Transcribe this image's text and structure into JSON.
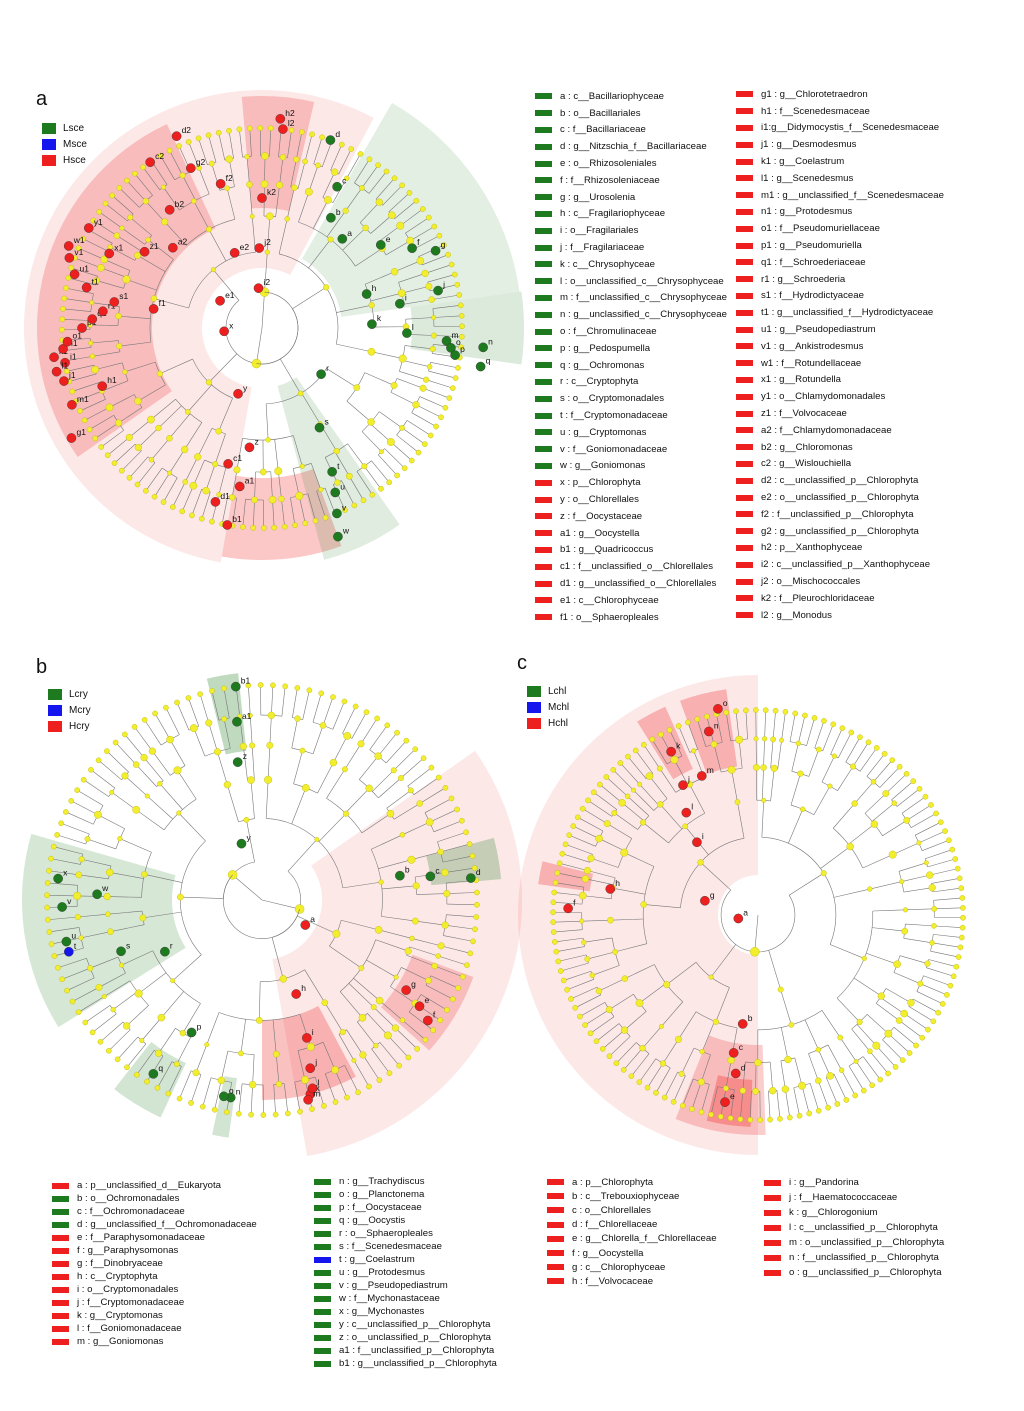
{
  "colors": {
    "green": "#1e7a1e",
    "blue": "#1515ee",
    "red": "#ee1f1f",
    "node": "#f2ee2e"
  },
  "panels": {
    "a": {
      "letter": "a",
      "groups": [
        {
          "label": "Lsce",
          "color": "#1e7a1e"
        },
        {
          "label": "Msce",
          "color": "#1515ee"
        },
        {
          "label": "Hsce",
          "color": "#ee1f1f"
        }
      ],
      "keys_col1": [
        {
          "text": "a : c__Bacillariophyceae",
          "color": "#1e7a1e"
        },
        {
          "text": "b : o__Bacillariales",
          "color": "#1e7a1e"
        },
        {
          "text": "c : f__Bacillariaceae",
          "color": "#1e7a1e"
        },
        {
          "text": "d : g__Nitzschia_f__Bacillariaceae",
          "color": "#1e7a1e"
        },
        {
          "text": "e : o__Rhizosoleniales",
          "color": "#1e7a1e"
        },
        {
          "text": "f : f__Rhizosoleniaceae",
          "color": "#1e7a1e"
        },
        {
          "text": "g : g__Urosolenia",
          "color": "#1e7a1e"
        },
        {
          "text": "h : c__Fragilariophyceae",
          "color": "#1e7a1e"
        },
        {
          "text": "i : o__Fragilariales",
          "color": "#1e7a1e"
        },
        {
          "text": "j : f__Fragilariaceae",
          "color": "#1e7a1e"
        },
        {
          "text": "k : c__Chrysophyceae",
          "color": "#1e7a1e"
        },
        {
          "text": "l : o__unclassified_c__Chrysophyceae",
          "color": "#1e7a1e"
        },
        {
          "text": "m : f__unclassified_c__Chrysophyceae",
          "color": "#1e7a1e"
        },
        {
          "text": "n : g__unclassified_c__Chrysophyceae",
          "color": "#1e7a1e"
        },
        {
          "text": "o : f__Chromulinaceae",
          "color": "#1e7a1e"
        },
        {
          "text": "p : g__Pedospumella",
          "color": "#1e7a1e"
        },
        {
          "text": "q : g__Ochromonas",
          "color": "#1e7a1e"
        },
        {
          "text": "r : c__Cryptophyta",
          "color": "#1e7a1e"
        },
        {
          "text": "s : o__Cryptomonadales",
          "color": "#1e7a1e"
        },
        {
          "text": "t : f__Cryptomonadaceae",
          "color": "#1e7a1e"
        },
        {
          "text": "u : g__Cryptomonas",
          "color": "#1e7a1e"
        },
        {
          "text": "v : f__Goniomonadaceae",
          "color": "#1e7a1e"
        },
        {
          "text": "w : g__Goniomonas",
          "color": "#1e7a1e"
        },
        {
          "text": "x : p__Chlorophyta",
          "color": "#ee1f1f"
        },
        {
          "text": "y : o__Chlorellales",
          "color": "#ee1f1f"
        },
        {
          "text": "z : f__Oocystaceae",
          "color": "#ee1f1f"
        },
        {
          "text": "a1 : g__Oocystella",
          "color": "#ee1f1f"
        },
        {
          "text": "b1 : g__Quadricoccus",
          "color": "#ee1f1f"
        },
        {
          "text": "c1 : f__unclassified_o__Chlorellales",
          "color": "#ee1f1f"
        },
        {
          "text": "d1 : g__unclassified_o__Chlorellales",
          "color": "#ee1f1f"
        },
        {
          "text": "e1 : c__Chlorophyceae",
          "color": "#ee1f1f"
        },
        {
          "text": "f1 : o__Sphaeropleales",
          "color": "#ee1f1f"
        }
      ],
      "keys_col2": [
        {
          "text": "g1 : g__Chlorotetraedron",
          "color": "#ee1f1f"
        },
        {
          "text": "h1 : f__Scenedesmaceae",
          "color": "#ee1f1f"
        },
        {
          "text": "i1:g__Didymocystis_f__Scenedesmaceae",
          "color": "#ee1f1f"
        },
        {
          "text": "j1 : g__Desmodesmus",
          "color": "#ee1f1f"
        },
        {
          "text": "k1 : g__Coelastrum",
          "color": "#ee1f1f"
        },
        {
          "text": "l1 : g__Scenedesmus",
          "color": "#ee1f1f"
        },
        {
          "text": "m1 : g__unclassified_f__Scenedesmaceae",
          "color": "#ee1f1f"
        },
        {
          "text": "n1 : g__Protodesmus",
          "color": "#ee1f1f"
        },
        {
          "text": "o1 : f__Pseudomuriellaceae",
          "color": "#ee1f1f"
        },
        {
          "text": "p1 : g__Pseudomuriella",
          "color": "#ee1f1f"
        },
        {
          "text": "q1 : f__Schroederiaceae",
          "color": "#ee1f1f"
        },
        {
          "text": "r1 : g__Schroederia",
          "color": "#ee1f1f"
        },
        {
          "text": "s1 : f__Hydrodictyaceae",
          "color": "#ee1f1f"
        },
        {
          "text": "t1 : g__unclassified_f__Hydrodictyaceae",
          "color": "#ee1f1f"
        },
        {
          "text": "u1 : g__Pseudopediastrum",
          "color": "#ee1f1f"
        },
        {
          "text": "v1 : g__Ankistrodesmus",
          "color": "#ee1f1f"
        },
        {
          "text": "w1 : f__Rotundellaceae",
          "color": "#ee1f1f"
        },
        {
          "text": "x1 : g__Rotundella",
          "color": "#ee1f1f"
        },
        {
          "text": "y1 : o__Chlamydomonadales",
          "color": "#ee1f1f"
        },
        {
          "text": "z1 : f__Volvocaceae",
          "color": "#ee1f1f"
        },
        {
          "text": "a2 : f__Chlamydomonadaceae",
          "color": "#ee1f1f"
        },
        {
          "text": "b2 : g__Chloromonas",
          "color": "#ee1f1f"
        },
        {
          "text": "c2 : g__Wislouchiella",
          "color": "#ee1f1f"
        },
        {
          "text": "d2 : c__unclassified_p__Chlorophyta",
          "color": "#ee1f1f"
        },
        {
          "text": "e2 : o__unclassified_p__Chlorophyta",
          "color": "#ee1f1f"
        },
        {
          "text": "f2 : f__unclassified_p__Chlorophyta",
          "color": "#ee1f1f"
        },
        {
          "text": "g2 : g__unclassified_p__Chlorophyta",
          "color": "#ee1f1f"
        },
        {
          "text": "h2 : p__Xanthophyceae",
          "color": "#ee1f1f"
        },
        {
          "text": "i2 : c__unclassified_p__Xanthophyceae",
          "color": "#ee1f1f"
        },
        {
          "text": "j2 : o__Mischococcales",
          "color": "#ee1f1f"
        },
        {
          "text": "k2 : f__Pleurochloridaceae",
          "color": "#ee1f1f"
        },
        {
          "text": "l2 : g__Monodus",
          "color": "#ee1f1f"
        }
      ]
    },
    "b": {
      "letter": "b",
      "groups": [
        {
          "label": "Lcry",
          "color": "#1e7a1e"
        },
        {
          "label": "Mcry",
          "color": "#1515ee"
        },
        {
          "label": "Hcry",
          "color": "#ee1f1f"
        }
      ],
      "keys_col1": [
        {
          "text": "a : p__unclassified_d__Eukaryota",
          "color": "#ee1f1f"
        },
        {
          "text": "b : o__Ochromonadales",
          "color": "#1e7a1e"
        },
        {
          "text": "c : f__Ochromonadaceae",
          "color": "#1e7a1e"
        },
        {
          "text": "d : g__unclassified_f__Ochromonadaceae",
          "color": "#1e7a1e"
        },
        {
          "text": "e : f__Paraphysomonadaceae",
          "color": "#ee1f1f"
        },
        {
          "text": "f : g__Paraphysomonas",
          "color": "#ee1f1f"
        },
        {
          "text": "g : f__Dinobryaceae",
          "color": "#ee1f1f"
        },
        {
          "text": "h : c__Cryptophyta",
          "color": "#ee1f1f"
        },
        {
          "text": "i : o__Cryptomonadales",
          "color": "#ee1f1f"
        },
        {
          "text": "j : f__Cryptomonadaceae",
          "color": "#ee1f1f"
        },
        {
          "text": "k : g__Cryptomonas",
          "color": "#ee1f1f"
        },
        {
          "text": "l : f__Goniomonadaceae",
          "color": "#ee1f1f"
        },
        {
          "text": "m : g__Goniomonas",
          "color": "#ee1f1f"
        }
      ],
      "keys_col2": [
        {
          "text": "n : g__Trachydiscus",
          "color": "#1e7a1e"
        },
        {
          "text": "o : g__Planctonema",
          "color": "#1e7a1e"
        },
        {
          "text": "p : f__Oocystaceae",
          "color": "#1e7a1e"
        },
        {
          "text": "q : g__Oocystis",
          "color": "#1e7a1e"
        },
        {
          "text": "r : o__Sphaeropleales",
          "color": "#1e7a1e"
        },
        {
          "text": "s : f__Scenedesmaceae",
          "color": "#1e7a1e"
        },
        {
          "text": "t : g__Coelastrum",
          "color": "#1515ee"
        },
        {
          "text": "u : g__Protodesmus",
          "color": "#1e7a1e"
        },
        {
          "text": "v : g__Pseudopediastrum",
          "color": "#1e7a1e"
        },
        {
          "text": "w : f__Mychonastaceae",
          "color": "#1e7a1e"
        },
        {
          "text": "x : g__Mychonastes",
          "color": "#1e7a1e"
        },
        {
          "text": "y : c__unclassified_p__Chlorophyta",
          "color": "#1e7a1e"
        },
        {
          "text": "z : o__unclassified_p__Chlorophyta",
          "color": "#1e7a1e"
        },
        {
          "text": "a1 : f__unclassified_p__Chlorophyta",
          "color": "#1e7a1e"
        },
        {
          "text": "b1 : g__unclassified_p__Chlorophyta",
          "color": "#1e7a1e"
        }
      ]
    },
    "c": {
      "letter": "c",
      "groups": [
        {
          "label": "Lchl",
          "color": "#1e7a1e"
        },
        {
          "label": "Mchl",
          "color": "#1515ee"
        },
        {
          "label": "Hchl",
          "color": "#ee1f1f"
        }
      ],
      "keys_col1": [
        {
          "text": "a : p__Chlorophyta",
          "color": "#ee1f1f"
        },
        {
          "text": "b : c__Trebouxiophyceae",
          "color": "#ee1f1f"
        },
        {
          "text": "c : o__Chlorellales",
          "color": "#ee1f1f"
        },
        {
          "text": "d : f__Chlorellaceae",
          "color": "#ee1f1f"
        },
        {
          "text": "e : g__Chlorella_f__Chlorellaceae",
          "color": "#ee1f1f"
        },
        {
          "text": "f : g__Oocystella",
          "color": "#ee1f1f"
        },
        {
          "text": "g : c__Chlorophyceae",
          "color": "#ee1f1f"
        },
        {
          "text": "h : f__Volvocaceae",
          "color": "#ee1f1f"
        }
      ],
      "keys_col2": [
        {
          "text": "i : g__Pandorina",
          "color": "#ee1f1f"
        },
        {
          "text": "j : f__Haematococcaceae",
          "color": "#ee1f1f"
        },
        {
          "text": "k : g__Chlorogonium",
          "color": "#ee1f1f"
        },
        {
          "text": "l : c__unclassified_p__Chlorophyta",
          "color": "#ee1f1f"
        },
        {
          "text": "m : o__unclassified_p__Chlorophyta",
          "color": "#ee1f1f"
        },
        {
          "text": "n : f__unclassified_p__Chlorophyta",
          "color": "#ee1f1f"
        },
        {
          "text": "o : g__unclassified_p__Chlorophyta",
          "color": "#ee1f1f"
        }
      ]
    }
  },
  "cladograms": {
    "a": {
      "marks": [
        {
          "label": "a",
          "group": "green"
        },
        {
          "label": "b",
          "group": "green"
        },
        {
          "label": "c",
          "group": "green"
        },
        {
          "label": "d",
          "group": "green"
        },
        {
          "label": "e",
          "group": "green"
        },
        {
          "label": "f",
          "group": "green"
        },
        {
          "label": "g",
          "group": "green"
        },
        {
          "label": "h",
          "group": "green"
        },
        {
          "label": "i",
          "group": "green"
        },
        {
          "label": "j",
          "group": "green"
        },
        {
          "label": "k",
          "group": "green"
        },
        {
          "label": "l",
          "group": "green"
        },
        {
          "label": "m",
          "group": "green"
        },
        {
          "label": "n",
          "group": "green"
        },
        {
          "label": "o",
          "group": "green"
        },
        {
          "label": "p",
          "group": "green"
        },
        {
          "label": "q",
          "group": "green"
        },
        {
          "label": "r",
          "group": "green"
        },
        {
          "label": "s",
          "group": "green"
        },
        {
          "label": "t",
          "group": "green"
        },
        {
          "label": "u",
          "group": "green"
        },
        {
          "label": "v",
          "group": "green"
        },
        {
          "label": "w",
          "group": "green"
        },
        {
          "label": "x",
          "group": "red"
        },
        {
          "label": "y",
          "group": "red"
        },
        {
          "label": "z",
          "group": "red"
        },
        {
          "label": "a1",
          "group": "red"
        },
        {
          "label": "b1",
          "group": "red"
        },
        {
          "label": "c1",
          "group": "red"
        },
        {
          "label": "d1",
          "group": "red"
        },
        {
          "label": "e1",
          "group": "red"
        },
        {
          "label": "f1",
          "group": "red"
        },
        {
          "label": "g1",
          "group": "red"
        },
        {
          "label": "h1",
          "group": "red"
        },
        {
          "label": "i1",
          "group": "red"
        },
        {
          "label": "j1",
          "group": "red"
        },
        {
          "label": "k1",
          "group": "red"
        },
        {
          "label": "l1",
          "group": "red"
        },
        {
          "label": "m1",
          "group": "red"
        },
        {
          "label": "n1",
          "group": "red"
        },
        {
          "label": "o1",
          "group": "red"
        },
        {
          "label": "p1",
          "group": "red"
        },
        {
          "label": "q1",
          "group": "red"
        },
        {
          "label": "r1",
          "group": "red"
        },
        {
          "label": "s1",
          "group": "red"
        },
        {
          "label": "t1",
          "group": "red"
        },
        {
          "label": "u1",
          "group": "red"
        },
        {
          "label": "v1",
          "group": "red"
        },
        {
          "label": "w1",
          "group": "red"
        },
        {
          "label": "x1",
          "group": "red"
        },
        {
          "label": "y1",
          "group": "red"
        },
        {
          "label": "z1",
          "group": "red"
        },
        {
          "label": "a2",
          "group": "red"
        },
        {
          "label": "b2",
          "group": "red"
        },
        {
          "label": "c2",
          "group": "red"
        },
        {
          "label": "d2",
          "group": "red"
        },
        {
          "label": "e2",
          "group": "red"
        },
        {
          "label": "f2",
          "group": "red"
        },
        {
          "label": "g2",
          "group": "red"
        },
        {
          "label": "h2",
          "group": "red"
        },
        {
          "label": "i2",
          "group": "red"
        },
        {
          "label": "j2",
          "group": "red"
        },
        {
          "label": "k2",
          "group": "red"
        },
        {
          "label": "l2",
          "group": "red"
        }
      ]
    },
    "b": {
      "marks": [
        {
          "label": "a",
          "group": "red"
        },
        {
          "label": "b",
          "group": "green"
        },
        {
          "label": "c",
          "group": "green"
        },
        {
          "label": "d",
          "group": "green"
        },
        {
          "label": "e",
          "group": "red"
        },
        {
          "label": "f",
          "group": "red"
        },
        {
          "label": "g",
          "group": "red"
        },
        {
          "label": "h",
          "group": "red"
        },
        {
          "label": "i",
          "group": "red"
        },
        {
          "label": "j",
          "group": "red"
        },
        {
          "label": "k",
          "group": "red"
        },
        {
          "label": "l",
          "group": "red"
        },
        {
          "label": "m",
          "group": "red"
        },
        {
          "label": "n",
          "group": "green"
        },
        {
          "label": "o",
          "group": "green"
        },
        {
          "label": "p",
          "group": "green"
        },
        {
          "label": "q",
          "group": "green"
        },
        {
          "label": "r",
          "group": "green"
        },
        {
          "label": "s",
          "group": "green"
        },
        {
          "label": "t",
          "group": "blue"
        },
        {
          "label": "u",
          "group": "green"
        },
        {
          "label": "v",
          "group": "green"
        },
        {
          "label": "w",
          "group": "green"
        },
        {
          "label": "x",
          "group": "green"
        },
        {
          "label": "y",
          "group": "green"
        },
        {
          "label": "z",
          "group": "green"
        },
        {
          "label": "a1",
          "group": "green"
        },
        {
          "label": "b1",
          "group": "green"
        }
      ]
    },
    "c": {
      "marks": [
        {
          "label": "a",
          "group": "red"
        },
        {
          "label": "b",
          "group": "red"
        },
        {
          "label": "c",
          "group": "red"
        },
        {
          "label": "d",
          "group": "red"
        },
        {
          "label": "e",
          "group": "red"
        },
        {
          "label": "f",
          "group": "red"
        },
        {
          "label": "g",
          "group": "red"
        },
        {
          "label": "h",
          "group": "red"
        },
        {
          "label": "i",
          "group": "red"
        },
        {
          "label": "j",
          "group": "red"
        },
        {
          "label": "k",
          "group": "red"
        },
        {
          "label": "l",
          "group": "red"
        },
        {
          "label": "m",
          "group": "red"
        },
        {
          "label": "n",
          "group": "red"
        },
        {
          "label": "o",
          "group": "red"
        }
      ]
    }
  }
}
